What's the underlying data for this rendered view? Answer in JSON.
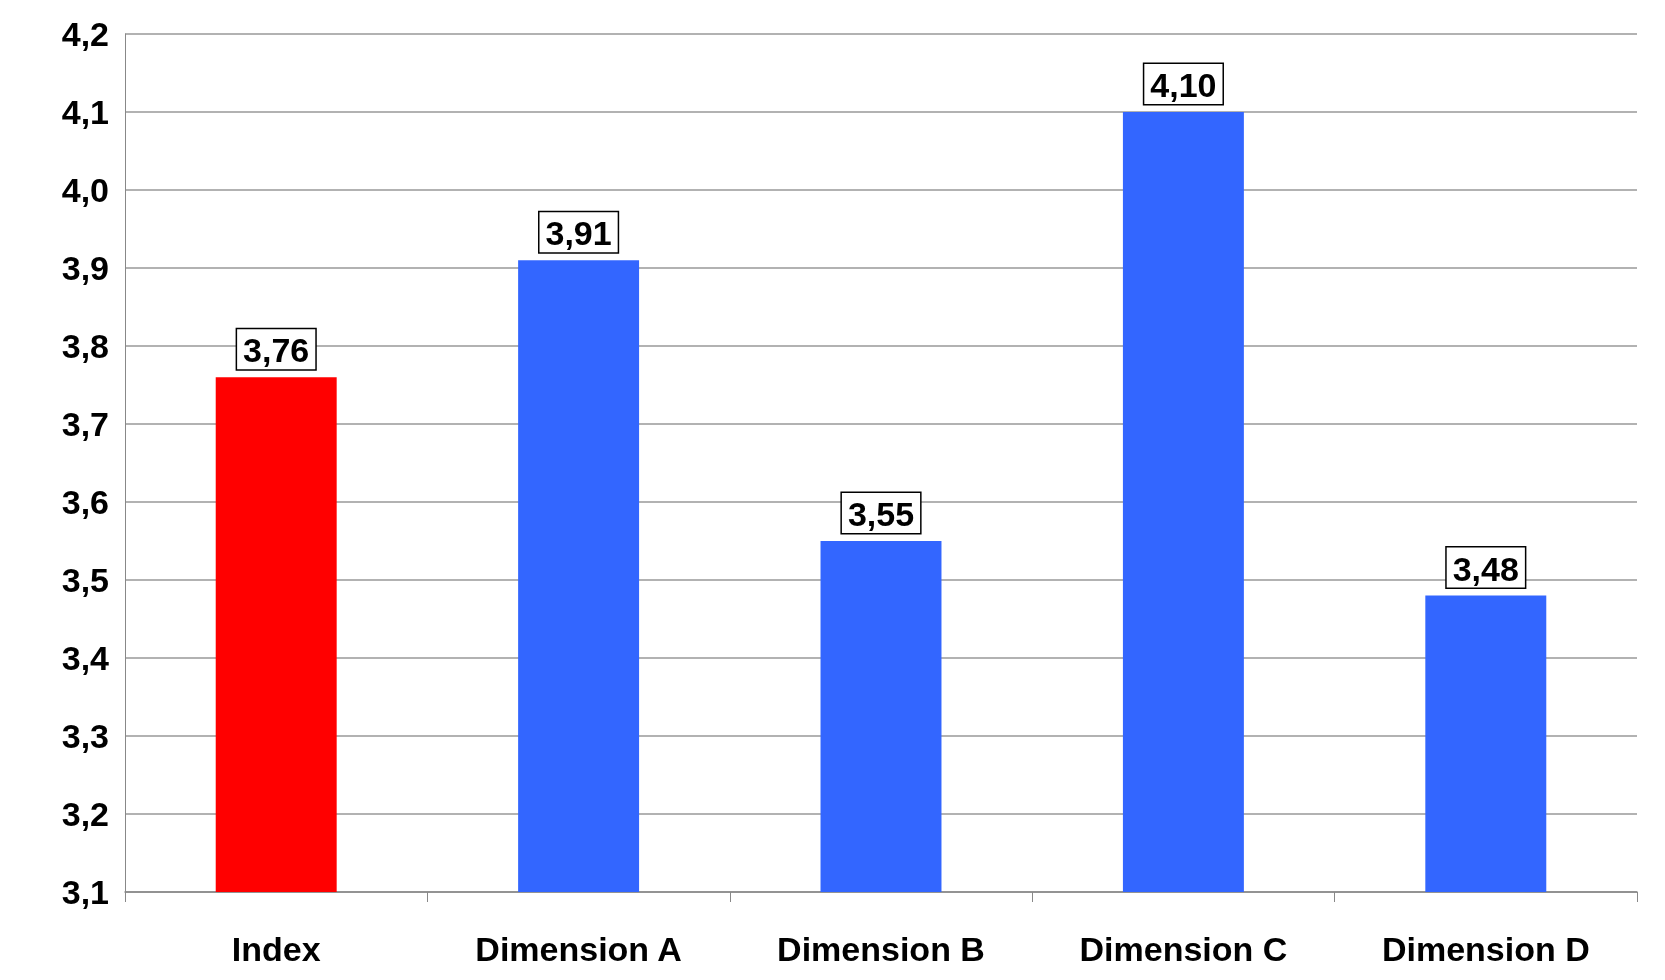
{
  "chart_data": {
    "type": "bar",
    "categories": [
      "Index",
      "Dimension A",
      "Dimension B",
      "Dimension C",
      "Dimension D"
    ],
    "values": [
      3.76,
      3.91,
      3.55,
      4.1,
      3.48
    ],
    "colors": [
      "#ff0000",
      "#3366ff",
      "#3366ff",
      "#3366ff",
      "#3366ff"
    ],
    "value_labels": [
      "3,76",
      "3,91",
      "3,55",
      "4,10",
      "3,48"
    ],
    "ylim": [
      3.1,
      4.2
    ],
    "yticks": [
      {
        "value": 3.1,
        "label": "3,1"
      },
      {
        "value": 3.2,
        "label": "3,2"
      },
      {
        "value": 3.3,
        "label": "3,3"
      },
      {
        "value": 3.4,
        "label": "3,4"
      },
      {
        "value": 3.5,
        "label": "3,5"
      },
      {
        "value": 3.6,
        "label": "3,6"
      },
      {
        "value": 3.7,
        "label": "3,7"
      },
      {
        "value": 3.8,
        "label": "3,8"
      },
      {
        "value": 3.9,
        "label": "3,9"
      },
      {
        "value": 4.0,
        "label": "4,0"
      },
      {
        "value": 4.1,
        "label": "4,1"
      },
      {
        "value": 4.2,
        "label": "4,2"
      }
    ],
    "grid": "y"
  }
}
